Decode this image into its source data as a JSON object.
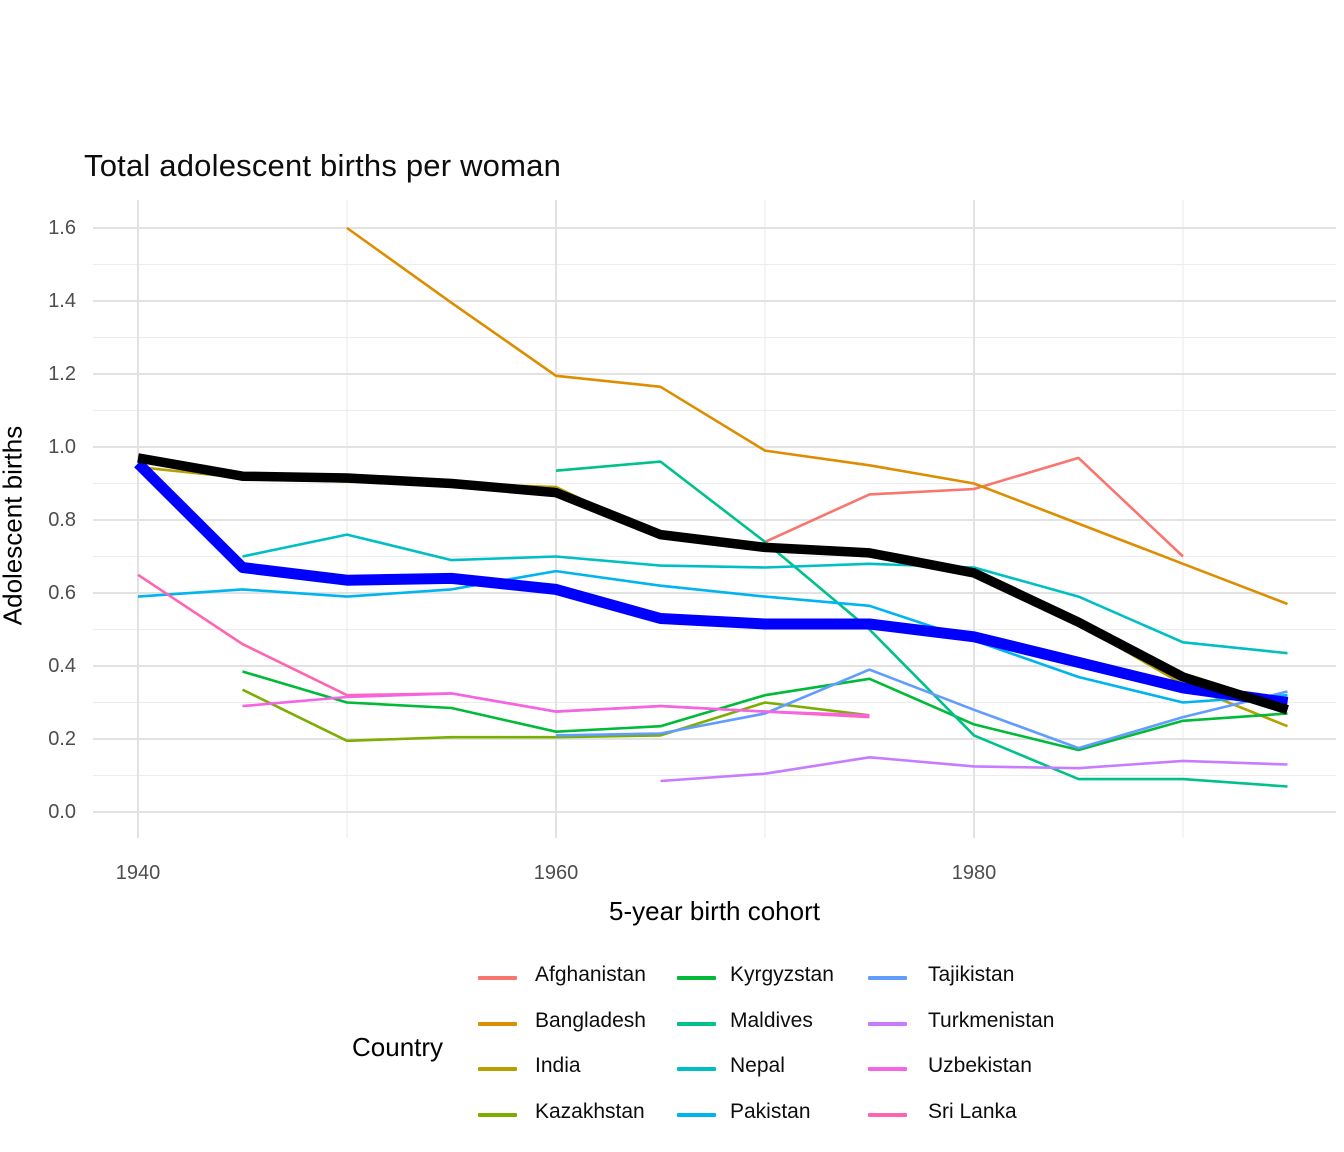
{
  "chart_data": {
    "type": "line",
    "title": "Total adolescent births per woman",
    "xlabel": "5-year birth cohort",
    "ylabel": "Adolescent births",
    "legend_title": "Country",
    "legend_position": "bottom",
    "grid": "on",
    "background": "#ffffff",
    "xlim": [
      1937.8,
      1997.3
    ],
    "ylim": [
      -0.07,
      1.67
    ],
    "x_ticks": [
      {
        "label": "1940",
        "value": 1940
      },
      {
        "label": "1960",
        "value": 1960
      },
      {
        "label": "1980",
        "value": 1980
      }
    ],
    "x_minor_gridlines": [
      1950,
      1970,
      1990
    ],
    "y_ticks": [
      {
        "label": "0.0",
        "value": 0.0
      },
      {
        "label": "0.2",
        "value": 0.2
      },
      {
        "label": "0.4",
        "value": 0.4
      },
      {
        "label": "0.6",
        "value": 0.6
      },
      {
        "label": "0.8",
        "value": 0.8
      },
      {
        "label": "1.0",
        "value": 1.0
      },
      {
        "label": "1.2",
        "value": 1.2
      },
      {
        "label": "1.4",
        "value": 1.4
      },
      {
        "label": "1.6",
        "value": 1.6
      }
    ],
    "y_minor_gridlines": [
      0.1,
      0.3,
      0.5,
      0.7,
      0.9,
      1.1,
      1.3,
      1.5
    ],
    "cohorts": [
      1940,
      1945,
      1950,
      1955,
      1960,
      1965,
      1970,
      1975,
      1980,
      1985,
      1990,
      1995
    ],
    "series": [
      {
        "name": "Afghanistan",
        "color": "#F8766D",
        "width": 2.6,
        "in_legend": true,
        "points": [
          [
            1970,
            0.74
          ],
          [
            1975,
            0.87
          ],
          [
            1980,
            0.885
          ],
          [
            1985,
            0.97
          ],
          [
            1990,
            0.7
          ]
        ]
      },
      {
        "name": "Bangladesh",
        "color": "#DE8C00",
        "width": 2.6,
        "in_legend": true,
        "points": [
          [
            1950,
            1.6
          ],
          [
            1955,
            1.395
          ],
          [
            1960,
            1.195
          ],
          [
            1965,
            1.165
          ],
          [
            1970,
            0.99
          ],
          [
            1975,
            0.95
          ],
          [
            1980,
            0.9
          ],
          [
            1985,
            0.79
          ],
          [
            1990,
            0.68
          ],
          [
            1995,
            0.57
          ]
        ]
      },
      {
        "name": "India",
        "color": "#B79F00",
        "width": 2.6,
        "in_legend": true,
        "points": [
          [
            1940,
            0.945
          ],
          [
            1945,
            0.915
          ],
          [
            1950,
            0.905
          ],
          [
            1955,
            0.9
          ],
          [
            1960,
            0.89
          ],
          [
            1965,
            0.755
          ],
          [
            1970,
            0.72
          ],
          [
            1975,
            0.7
          ],
          [
            1980,
            0.65
          ],
          [
            1985,
            0.515
          ],
          [
            1990,
            0.35
          ],
          [
            1995,
            0.235
          ]
        ]
      },
      {
        "name": "Kazakhstan",
        "color": "#7CAE00",
        "width": 2.6,
        "in_legend": true,
        "points": [
          [
            1945,
            0.335
          ],
          [
            1950,
            0.195
          ],
          [
            1955,
            0.205
          ],
          [
            1960,
            0.205
          ],
          [
            1965,
            0.21
          ],
          [
            1970,
            0.3
          ],
          [
            1975,
            0.265
          ]
        ]
      },
      {
        "name": "Kyrgyzstan",
        "color": "#00BA38",
        "width": 2.6,
        "in_legend": true,
        "points": [
          [
            1945,
            0.385
          ],
          [
            1950,
            0.3
          ],
          [
            1955,
            0.285
          ],
          [
            1960,
            0.22
          ],
          [
            1965,
            0.235
          ],
          [
            1970,
            0.32
          ],
          [
            1975,
            0.365
          ],
          [
            1980,
            0.24
          ],
          [
            1985,
            0.17
          ],
          [
            1990,
            0.25
          ],
          [
            1995,
            0.27
          ]
        ]
      },
      {
        "name": "Maldives",
        "color": "#00C08B",
        "width": 2.6,
        "in_legend": true,
        "points": [
          [
            1960,
            0.935
          ],
          [
            1965,
            0.96
          ],
          [
            1970,
            0.74
          ],
          [
            1975,
            0.5
          ],
          [
            1980,
            0.21
          ],
          [
            1985,
            0.09
          ],
          [
            1990,
            0.09
          ],
          [
            1995,
            0.07
          ]
        ]
      },
      {
        "name": "Nepal",
        "color": "#00BFC4",
        "width": 2.6,
        "in_legend": true,
        "points": [
          [
            1945,
            0.7
          ],
          [
            1950,
            0.76
          ],
          [
            1955,
            0.69
          ],
          [
            1960,
            0.7
          ],
          [
            1965,
            0.675
          ],
          [
            1970,
            0.67
          ],
          [
            1975,
            0.68
          ],
          [
            1980,
            0.67
          ],
          [
            1985,
            0.59
          ],
          [
            1990,
            0.465
          ],
          [
            1995,
            0.435
          ]
        ]
      },
      {
        "name": "Pakistan",
        "color": "#00B4F0",
        "width": 2.6,
        "in_legend": true,
        "points": [
          [
            1940,
            0.59
          ],
          [
            1945,
            0.61
          ],
          [
            1950,
            0.59
          ],
          [
            1955,
            0.61
          ],
          [
            1960,
            0.66
          ],
          [
            1965,
            0.62
          ],
          [
            1970,
            0.59
          ],
          [
            1975,
            0.565
          ],
          [
            1980,
            0.47
          ],
          [
            1985,
            0.37
          ],
          [
            1990,
            0.3
          ],
          [
            1995,
            0.32
          ]
        ]
      },
      {
        "name": "Tajikistan",
        "color": "#619CFF",
        "width": 2.6,
        "in_legend": true,
        "points": [
          [
            1960,
            0.21
          ],
          [
            1965,
            0.215
          ],
          [
            1970,
            0.27
          ],
          [
            1975,
            0.39
          ],
          [
            1980,
            0.28
          ],
          [
            1985,
            0.175
          ],
          [
            1990,
            0.26
          ],
          [
            1995,
            0.33
          ]
        ]
      },
      {
        "name": "Turkmenistan",
        "color": "#C77CFF",
        "width": 2.6,
        "in_legend": true,
        "points": [
          [
            1965,
            0.085
          ],
          [
            1970,
            0.105
          ],
          [
            1975,
            0.15
          ],
          [
            1980,
            0.125
          ],
          [
            1985,
            0.12
          ],
          [
            1990,
            0.14
          ],
          [
            1995,
            0.13
          ]
        ]
      },
      {
        "name": "Sri Lanka",
        "color": "#FF64B0",
        "width": 2.6,
        "in_legend": true,
        "points": [
          [
            1940,
            0.65
          ],
          [
            1945,
            0.46
          ],
          [
            1950,
            0.32
          ],
          [
            1955,
            0.325
          ],
          [
            1960,
            0.275
          ],
          [
            1965,
            0.29
          ],
          [
            1970,
            0.275
          ],
          [
            1975,
            0.26
          ]
        ]
      },
      {
        "name": "Uzbekistan",
        "color": "#F564E3",
        "width": 2.6,
        "in_legend": true,
        "points": [
          [
            1945,
            0.29
          ],
          [
            1950,
            0.315
          ],
          [
            1955,
            0.325
          ],
          [
            1960,
            0.275
          ],
          [
            1965,
            0.29
          ],
          [
            1970,
            0.275
          ],
          [
            1975,
            0.265
          ]
        ]
      },
      {
        "name": "bold_blue_line_unlabeled",
        "color": "#0000FF",
        "width": 11,
        "in_legend": false,
        "points": [
          [
            1940,
            0.955
          ],
          [
            1945,
            0.67
          ],
          [
            1950,
            0.635
          ],
          [
            1955,
            0.64
          ],
          [
            1960,
            0.61
          ],
          [
            1965,
            0.53
          ],
          [
            1970,
            0.515
          ],
          [
            1975,
            0.515
          ],
          [
            1980,
            0.48
          ],
          [
            1985,
            0.41
          ],
          [
            1990,
            0.34
          ],
          [
            1995,
            0.3
          ]
        ]
      },
      {
        "name": "bold_black_line_unlabeled",
        "color": "#000000",
        "width": 9.5,
        "in_legend": false,
        "points": [
          [
            1940,
            0.97
          ],
          [
            1945,
            0.92
          ],
          [
            1950,
            0.915
          ],
          [
            1955,
            0.9
          ],
          [
            1960,
            0.875
          ],
          [
            1965,
            0.76
          ],
          [
            1970,
            0.725
          ],
          [
            1975,
            0.71
          ],
          [
            1980,
            0.655
          ],
          [
            1985,
            0.52
          ],
          [
            1990,
            0.37
          ],
          [
            1995,
            0.28
          ]
        ]
      }
    ],
    "legend_items": [
      "Afghanistan",
      "Bangladesh",
      "India",
      "Kazakhstan",
      "Kyrgyzstan",
      "Maldives",
      "Nepal",
      "Pakistan",
      "Tajikistan",
      "Turkmenistan",
      "Uzbekistan",
      "Sri Lanka"
    ]
  },
  "style_colors": {
    "major_grid": "#E2E2E2",
    "minor_grid": "#ECECEC",
    "tick_text": "#4d4d4d",
    "title_text": "#0d0d0d"
  }
}
